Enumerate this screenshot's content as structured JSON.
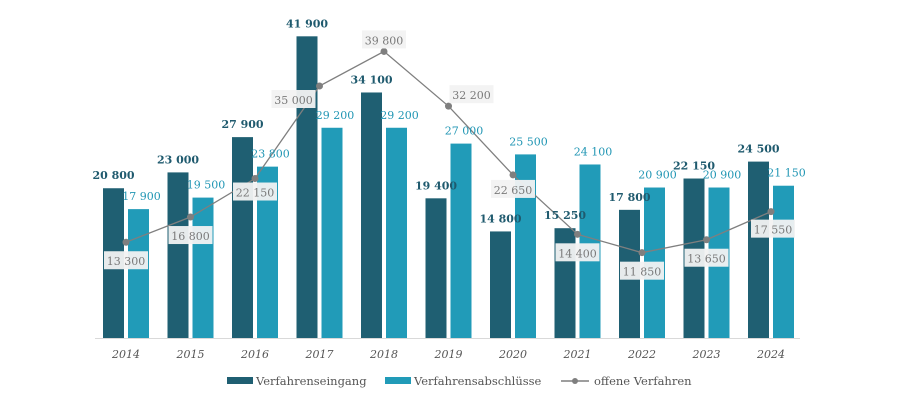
{
  "chart_data": {
    "type": "bar",
    "title": "",
    "xlabel": "",
    "ylabel": "",
    "ylim": [
      0,
      47000
    ],
    "grid": false,
    "legend_position": "bottom",
    "categories": [
      "2014",
      "2015",
      "2016",
      "2017",
      "2018",
      "2019",
      "2020",
      "2021",
      "2022",
      "2023",
      "2024"
    ],
    "series": [
      {
        "name": "Verfahrenseingang",
        "type": "bar",
        "color": "#1f5f72",
        "label_color": "#1f5a6e",
        "values": [
          20800,
          23000,
          27900,
          41900,
          34100,
          19400,
          14800,
          15250,
          17800,
          22150,
          24500
        ],
        "labels": [
          "20 800",
          "23 000",
          "27 900",
          "41 900",
          "34 100",
          "19 400",
          "14 800",
          "15 250",
          "17 800",
          "22 150",
          "24 500"
        ]
      },
      {
        "name": "Verfahrensabschlüsse",
        "type": "bar",
        "color": "#219bb8",
        "label_color": "#2196b4",
        "values": [
          17900,
          19500,
          23800,
          29200,
          29200,
          27000,
          25500,
          24100,
          20900,
          20900,
          21150
        ],
        "labels": [
          "17 900",
          "19 500",
          "23 800",
          "29 200",
          "29 200",
          "27 000",
          "25 500",
          "24 100",
          "20 900",
          "20 900",
          "21 150"
        ]
      },
      {
        "name": "offene Verfahren",
        "type": "line",
        "color": "#7f7f7f",
        "label_color": "#7a7a7a",
        "values": [
          13300,
          16800,
          22150,
          35000,
          39800,
          32200,
          22650,
          14400,
          11850,
          13650,
          17550
        ],
        "labels": [
          "13 300",
          "16 800",
          "22 150",
          "35 000",
          "39 800",
          "32 200",
          "22 650",
          "14 400",
          "11 850",
          "13 650",
          "17 550"
        ]
      }
    ]
  }
}
